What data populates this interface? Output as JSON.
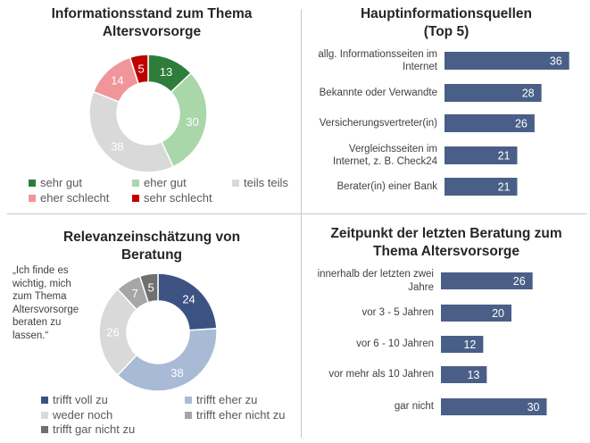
{
  "colors": {
    "bar": "#4a5f87",
    "sehr_gut": "#2e7d3a",
    "eher_gut": "#a9d7a9",
    "teils_teils": "#d9d9d9",
    "eher_schlecht": "#f0969a",
    "sehr_schlecht": "#c00000",
    "trifft_voll_zu": "#3b5283",
    "trifft_eher_zu": "#a9bad6",
    "weder_noch": "#d9d9d9",
    "trifft_eher_nicht_zu": "#a6a6a6",
    "trifft_gar_nicht_zu": "#707070"
  },
  "chart_data": [
    {
      "type": "pie",
      "title": "Informationsstand zum Thema Altersvorsorge",
      "categories": [
        "sehr gut",
        "eher gut",
        "teils teils",
        "eher schlecht",
        "sehr schlecht"
      ],
      "values": [
        13,
        30,
        38,
        14,
        5
      ],
      "legend": "bottom"
    },
    {
      "type": "bar",
      "title": "Hauptinformationsquellen (Top 5)",
      "categories": [
        "allg. Informationsseiten im Internet",
        "Bekannte oder Verwandte",
        "Versicherungsvertreter(in)",
        "Vergleichsseiten im Internet, z. B. Check24",
        "Berater(in) einer Bank"
      ],
      "values": [
        36,
        28,
        26,
        21,
        21
      ],
      "xlim": [
        0,
        40
      ]
    },
    {
      "type": "pie",
      "title": "Relevanzeinschätzung von Beratung",
      "annotation": "„Ich finde es wichtig, mich zum Thema Altersvorsorge beraten zu lassen.“",
      "categories": [
        "trifft voll zu",
        "trifft eher zu",
        "weder noch",
        "trifft eher nicht zu",
        "trifft gar nicht zu"
      ],
      "values": [
        24,
        38,
        26,
        7,
        5
      ],
      "legend": "bottom"
    },
    {
      "type": "bar",
      "title": "Zeitpunkt der letzten Beratung zum Thema Altersvorsorge",
      "categories": [
        "innerhalb der letzten zwei Jahre",
        "vor 3 - 5 Jahren",
        "vor 6 - 10 Jahren",
        "vor mehr als 10 Jahren",
        "gar nicht"
      ],
      "values": [
        26,
        20,
        12,
        13,
        30
      ],
      "xlim": [
        0,
        40
      ]
    }
  ],
  "panels": {
    "info": {
      "title_line1": "Informationsstand zum Thema",
      "title_line2": "Altersvorsorge"
    },
    "quellen": {
      "title_line1": "Hauptinformationsquellen",
      "title_line2": "(Top 5)",
      "labels": [
        [
          "allg. Informationsseiten im",
          "Internet"
        ],
        [
          "Bekannte oder Verwandte"
        ],
        [
          "Versicherungsvertreter(in)"
        ],
        [
          "Vergleichsseiten im",
          "Internet, z. B. Check24"
        ],
        [
          "Berater(in) einer Bank"
        ]
      ]
    },
    "relevanz": {
      "title_line1": "Relevanzeinschätzung von",
      "title_line2": "Beratung",
      "quote": "„Ich finde es wichtig, mich zum Thema Altersvorsorge beraten zu lassen.“"
    },
    "zeitpunkt": {
      "title_line1": "Zeitpunkt der letzten Beratung zum",
      "title_line2": "Thema Altersvorsorge",
      "labels": [
        [
          "innerhalb der letzten zwei",
          "Jahre"
        ],
        [
          "vor 3 - 5 Jahren"
        ],
        [
          "vor 6 - 10 Jahren"
        ],
        [
          "vor mehr als 10 Jahren"
        ],
        [
          "gar nicht"
        ]
      ]
    }
  }
}
